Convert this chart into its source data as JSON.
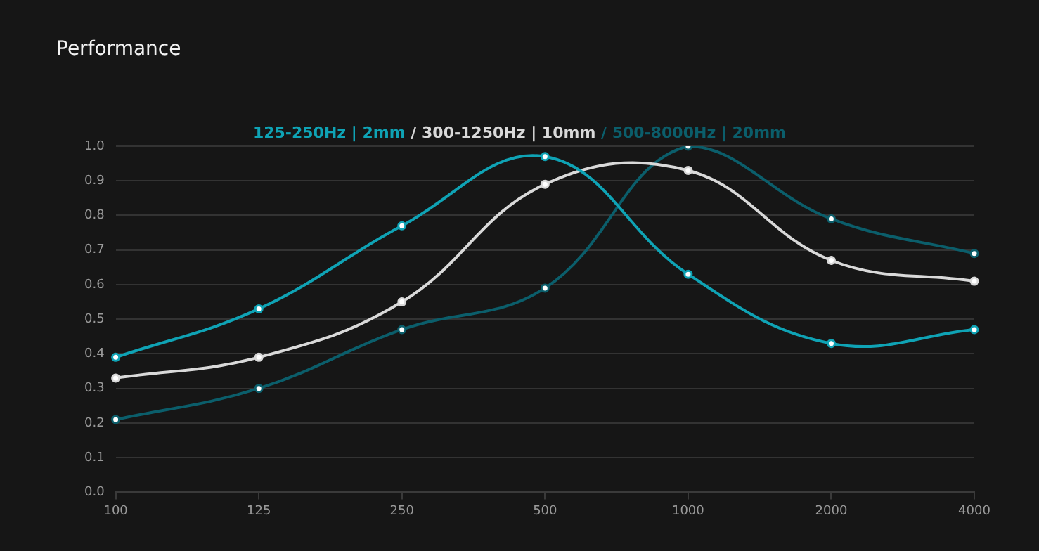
{
  "chart_data": {
    "type": "line",
    "title": "Performance",
    "categories": [
      "100",
      "125",
      "250",
      "500",
      "1000",
      "2000",
      "4000"
    ],
    "series": [
      {
        "name": "125-250Hz | 2mm",
        "color": "#0fa3b5",
        "values": [
          0.39,
          0.53,
          0.77,
          0.97,
          0.63,
          0.43,
          0.47
        ]
      },
      {
        "name": "/ 300-1250Hz | 10mm",
        "color": "#d9d9d9",
        "values": [
          0.33,
          0.39,
          0.55,
          0.89,
          0.93,
          0.67,
          0.61
        ]
      },
      {
        "name": "/ 500-8000Hz | 20mm",
        "color": "#0b5e6b",
        "values": [
          0.21,
          0.3,
          0.47,
          0.59,
          1.0,
          0.79,
          0.69
        ]
      }
    ],
    "ylim": [
      0,
      1
    ],
    "yticks": [
      {
        "value": 0,
        "label": "0.0"
      },
      {
        "value": 0.1,
        "label": "0.1"
      },
      {
        "value": 0.2,
        "label": "0.2"
      },
      {
        "value": 0.3,
        "label": "0.3"
      },
      {
        "value": 0.4,
        "label": "0.4"
      },
      {
        "value": 0.5,
        "label": "0.5"
      },
      {
        "value": 0.6,
        "label": "0.6"
      },
      {
        "value": 0.7,
        "label": "0.7"
      },
      {
        "value": 0.8,
        "label": "0.8"
      },
      {
        "value": 0.9,
        "label": "0.9"
      },
      {
        "value": 1,
        "label": "1.0"
      }
    ],
    "grid": "y",
    "legend": "top",
    "marker": "circle",
    "line_style": "solid"
  }
}
